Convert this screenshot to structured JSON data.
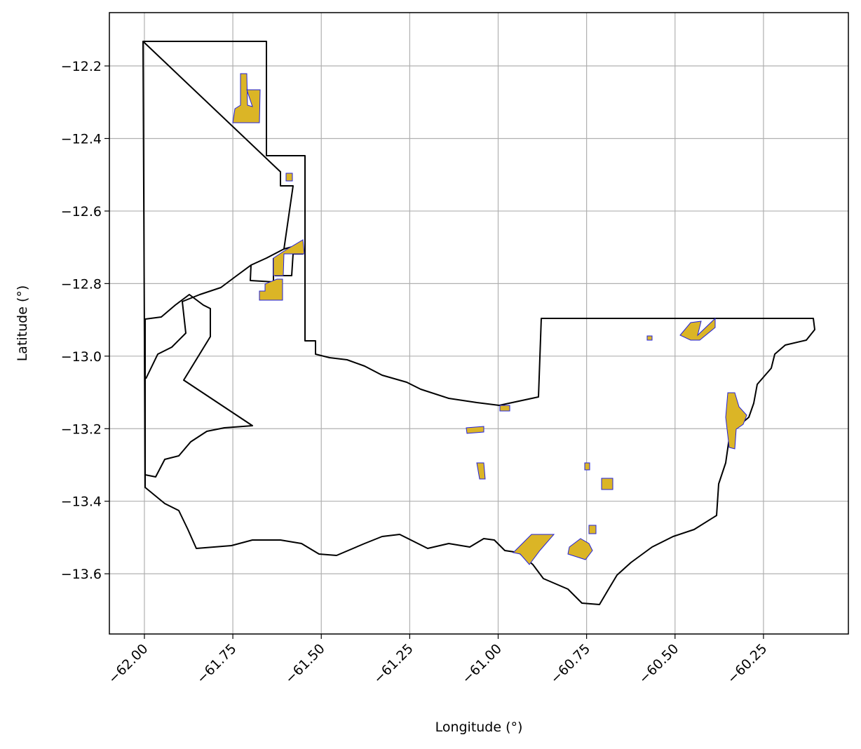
{
  "chart_data": {
    "type": "map",
    "xlabel": "Longitude (°)",
    "ylabel": "Latitude (°)",
    "xlim": [
      -62.099,
      -60.01
    ],
    "ylim": [
      -13.766,
      -12.053
    ],
    "xticks": [
      {
        "value": -62.0,
        "label": "−62.00"
      },
      {
        "value": -61.75,
        "label": "−61.75"
      },
      {
        "value": -61.5,
        "label": "−61.50"
      },
      {
        "value": -61.25,
        "label": "−61.25"
      },
      {
        "value": -61.0,
        "label": "−61.00"
      },
      {
        "value": -60.75,
        "label": "−60.75"
      },
      {
        "value": -60.5,
        "label": "−60.50"
      },
      {
        "value": -60.25,
        "label": "−60.25"
      }
    ],
    "yticks": [
      {
        "value": -12.2,
        "label": "−12.2"
      },
      {
        "value": -12.4,
        "label": "−12.4"
      },
      {
        "value": -12.6,
        "label": "−12.6"
      },
      {
        "value": -12.8,
        "label": "−12.8"
      },
      {
        "value": -13.0,
        "label": "−13.0"
      },
      {
        "value": -13.2,
        "label": "−13.2"
      },
      {
        "value": -13.4,
        "label": "−13.4"
      },
      {
        "value": -13.6,
        "label": "−13.6"
      }
    ],
    "grid": true
  }
}
